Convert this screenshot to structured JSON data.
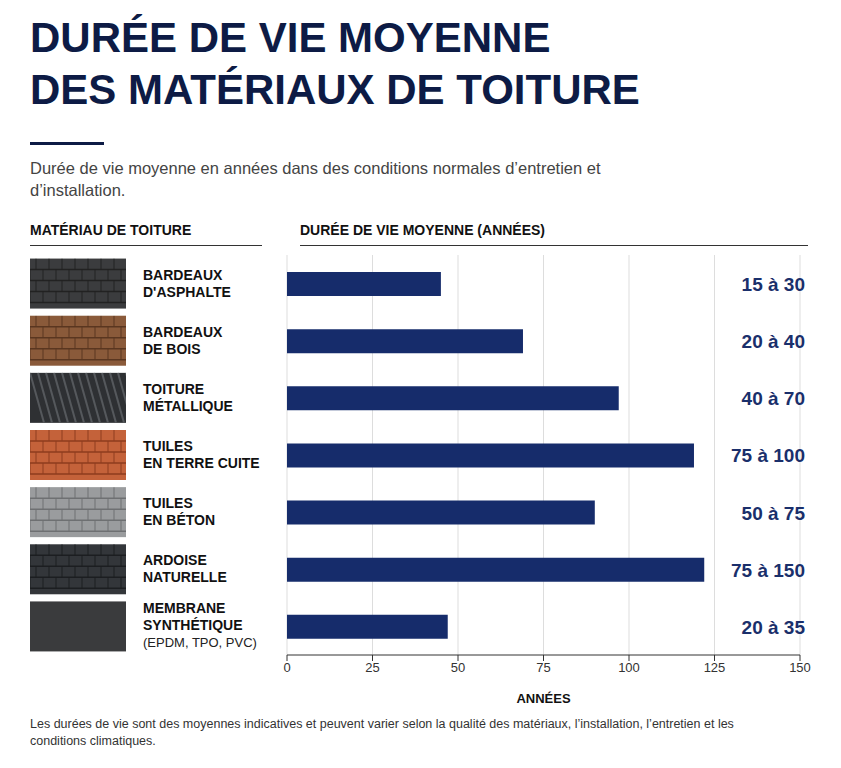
{
  "chart_data": {
    "type": "bar",
    "orientation": "horizontal",
    "title": [
      "DURÉE DE VIE MOYENNE",
      "DES MATÉRIAUX DE TOITURE"
    ],
    "subtitle": "Durée de vie moyenne en années dans des conditions normales d’entretien et d’installation.",
    "category_header": "MATÉRIAU DE TOITURE",
    "value_header": "DURÉE DE VIE MOYENNE (ANNÉES)",
    "x_label": "ANNÉES",
    "categories": [
      "BARDEAUX D'ASPHALTE",
      "BARDEAUX DE BOIS",
      "TOITURE MÉTALLIQUE",
      "TUILES EN TERRE CUITE",
      "TUILES EN BÉTON",
      "ARDOISE NATURELLE",
      "MEMBRANE SYNTHÉTIQUE (EPDM, TPO, PVC)"
    ],
    "values": [
      45,
      69,
      97,
      119,
      90,
      122,
      47
    ],
    "durations": [
      "15 à 30",
      "20 à 40",
      "40 à 70",
      "75 à 100",
      "50 à 75",
      "75 à 150",
      "20 à 35"
    ],
    "color": "#162c6b",
    "xlim": [
      0,
      150
    ],
    "xticks": [
      0,
      25,
      50,
      75,
      100,
      125,
      150
    ],
    "grid": true,
    "note": "Les durées de vie sont des moyennes indicatives et peuvent varier selon la qualité des matériaux, l’installation, l’entretien et les conditions climatiques."
  }
}
